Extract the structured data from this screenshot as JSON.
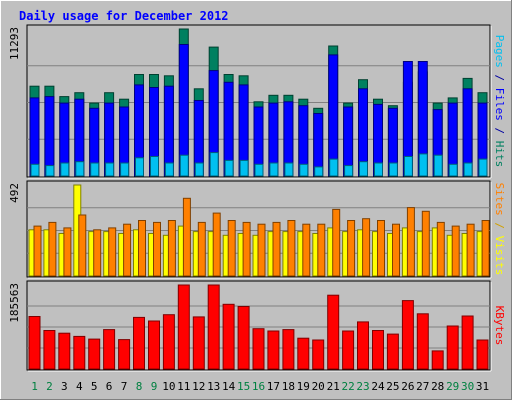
{
  "chart_data": {
    "type": "bar",
    "title": "Daily usage for December 2012",
    "categories": [
      "1",
      "2",
      "3",
      "4",
      "5",
      "6",
      "7",
      "8",
      "9",
      "10",
      "11",
      "12",
      "13",
      "14",
      "15",
      "16",
      "17",
      "18",
      "19",
      "20",
      "21",
      "22",
      "23",
      "24",
      "25",
      "26",
      "27",
      "28",
      "29",
      "30",
      "31"
    ],
    "weekend_days": [
      "1",
      "2",
      "8",
      "9",
      "15",
      "16",
      "22",
      "23",
      "29",
      "30"
    ],
    "panels": [
      {
        "id": "top",
        "ymax": 11293,
        "ymax_label": "11293",
        "side_labels": [
          {
            "text": "Pages",
            "color": "#00c0f0"
          },
          {
            "text": " / ",
            "color": "#0000a0"
          },
          {
            "text": "Files",
            "color": "#0000ff"
          },
          {
            "text": " / ",
            "color": "#0000a0"
          },
          {
            "text": "Hits",
            "color": "#008060"
          }
        ],
        "series": [
          {
            "name": "Hits",
            "color": "#008060",
            "values": [
              6900,
              6900,
              6100,
              6400,
              5600,
              6400,
              5900,
              7800,
              7800,
              7700,
              11293,
              6700,
              9900,
              7800,
              7700,
              5700,
              6200,
              6200,
              5900,
              5200,
              9987,
              5600,
              7400,
              5900,
              5400,
              7200,
              8000,
              5600,
              6000,
              7500,
              6400
            ]
          },
          {
            "name": "Files",
            "color": "#0000ff",
            "values": [
              6000,
              6100,
              5600,
              5900,
              5200,
              5600,
              5300,
              7000,
              6800,
              6900,
              10100,
              5800,
              8100,
              7200,
              7000,
              5300,
              5600,
              5700,
              5400,
              4800,
              9300,
              5300,
              6700,
              5500,
              5200,
              8800,
              8800,
              5100,
              5600,
              6700,
              5600
            ]
          },
          {
            "name": "Pages",
            "color": "#00c0f0",
            "values": [
              900,
              800,
              1000,
              1100,
              1000,
              1000,
              1000,
              1400,
              1500,
              1000,
              1600,
              1000,
              1800,
              1200,
              1200,
              900,
              1000,
              1000,
              900,
              700,
              1300,
              800,
              1100,
              1000,
              1000,
              1500,
              1700,
              1600,
              900,
              1000,
              1300
            ]
          }
        ]
      },
      {
        "id": "middle",
        "ymax": 492,
        "ymax_label": "492",
        "side_labels": [
          {
            "text": "Sites",
            "color": "#ff8000"
          },
          {
            "text": " / ",
            "color": "#d0a000"
          },
          {
            "text": "Visits",
            "color": "#ffff00"
          }
        ],
        "series": [
          {
            "name": "Visits",
            "color": "#ffff00",
            "values": [
              250,
              250,
              230,
              492,
              240,
              240,
              230,
              250,
              230,
              220,
              270,
              240,
              240,
              220,
              230,
              220,
              240,
              240,
              240,
              230,
              260,
              240,
              250,
              240,
              230,
              260,
              240,
              260,
              220,
              230,
              240
            ]
          },
          {
            "name": "Sites",
            "color": "#ff8000",
            "values": [
              270,
              290,
              260,
              330,
              250,
              260,
              280,
              300,
              290,
              300,
              420,
              290,
              340,
              300,
              290,
              280,
              290,
              300,
              280,
              280,
              360,
              300,
              310,
              300,
              280,
              370,
              350,
              290,
              270,
              280,
              300
            ]
          }
        ]
      },
      {
        "id": "bottom",
        "ymax": 185563,
        "ymax_label": "185563",
        "side_labels": [
          {
            "text": "KBytes",
            "color": "#ff0000"
          }
        ],
        "series": [
          {
            "name": "KBytes",
            "color": "#ff0000",
            "values": [
              116000,
              85000,
              79000,
              72000,
              66000,
              87000,
              65000,
              114000,
              106000,
              120000,
              185563,
              115000,
              185563,
              143000,
              138000,
              89000,
              84000,
              87000,
              68000,
              64000,
              163000,
              84000,
              104000,
              85000,
              77000,
              151000,
              122000,
              40000,
              95000,
              117000,
              64000
            ]
          }
        ]
      }
    ]
  }
}
